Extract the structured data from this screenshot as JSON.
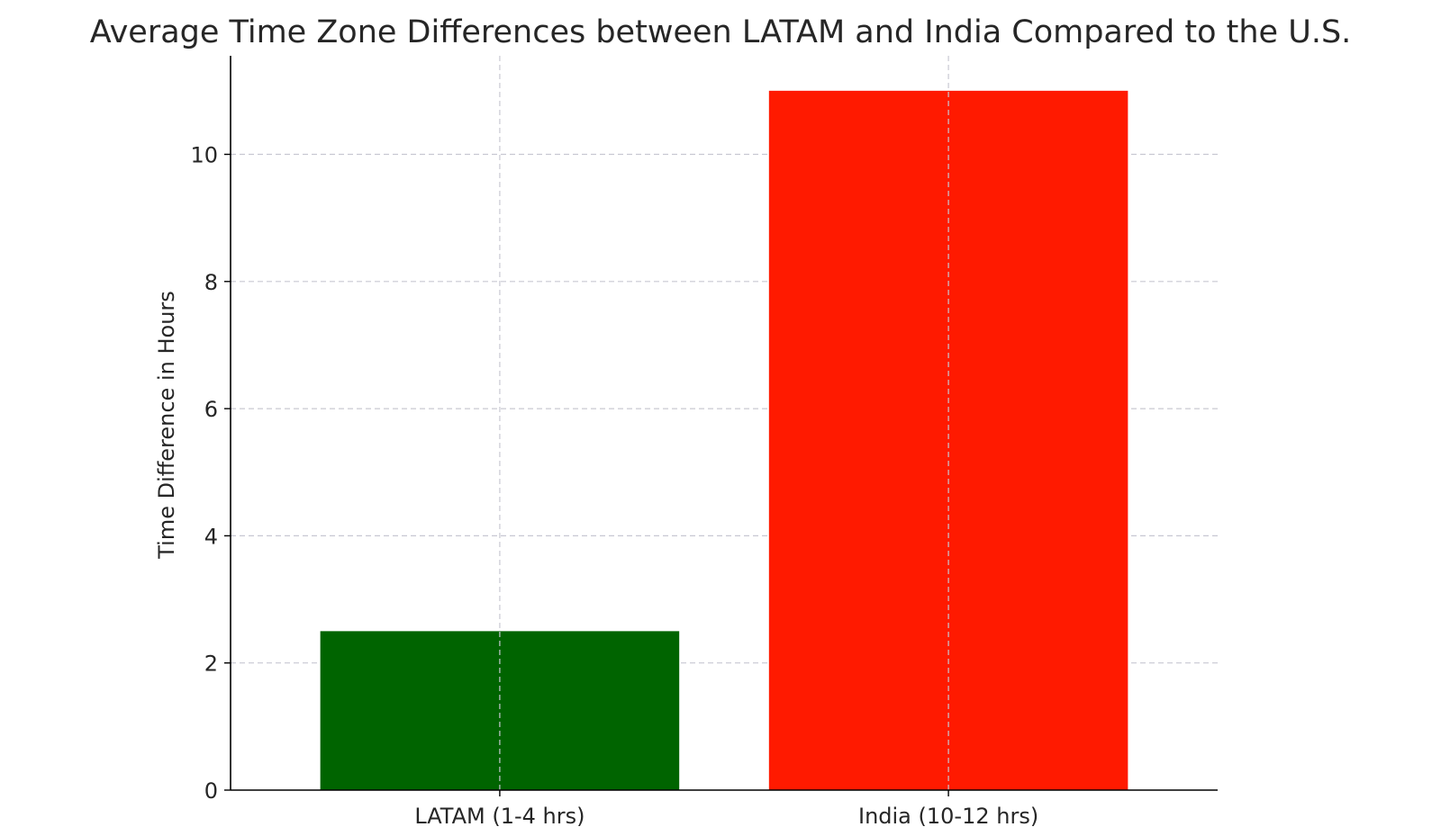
{
  "chart_data": {
    "type": "bar",
    "title": "Average Time Zone Differences between LATAM and India Compared to the U.S.",
    "xlabel": "",
    "ylabel": "Time Difference in Hours",
    "categories": [
      "LATAM (1-4 hrs)",
      "India (10-12 hrs)"
    ],
    "values": [
      2.5,
      11
    ],
    "colors": [
      "#006400",
      "#ff1a00"
    ],
    "ylim": [
      0,
      11.55
    ],
    "yticks": [
      0,
      2,
      4,
      6,
      8,
      10
    ],
    "grid": true,
    "legend": "none"
  }
}
